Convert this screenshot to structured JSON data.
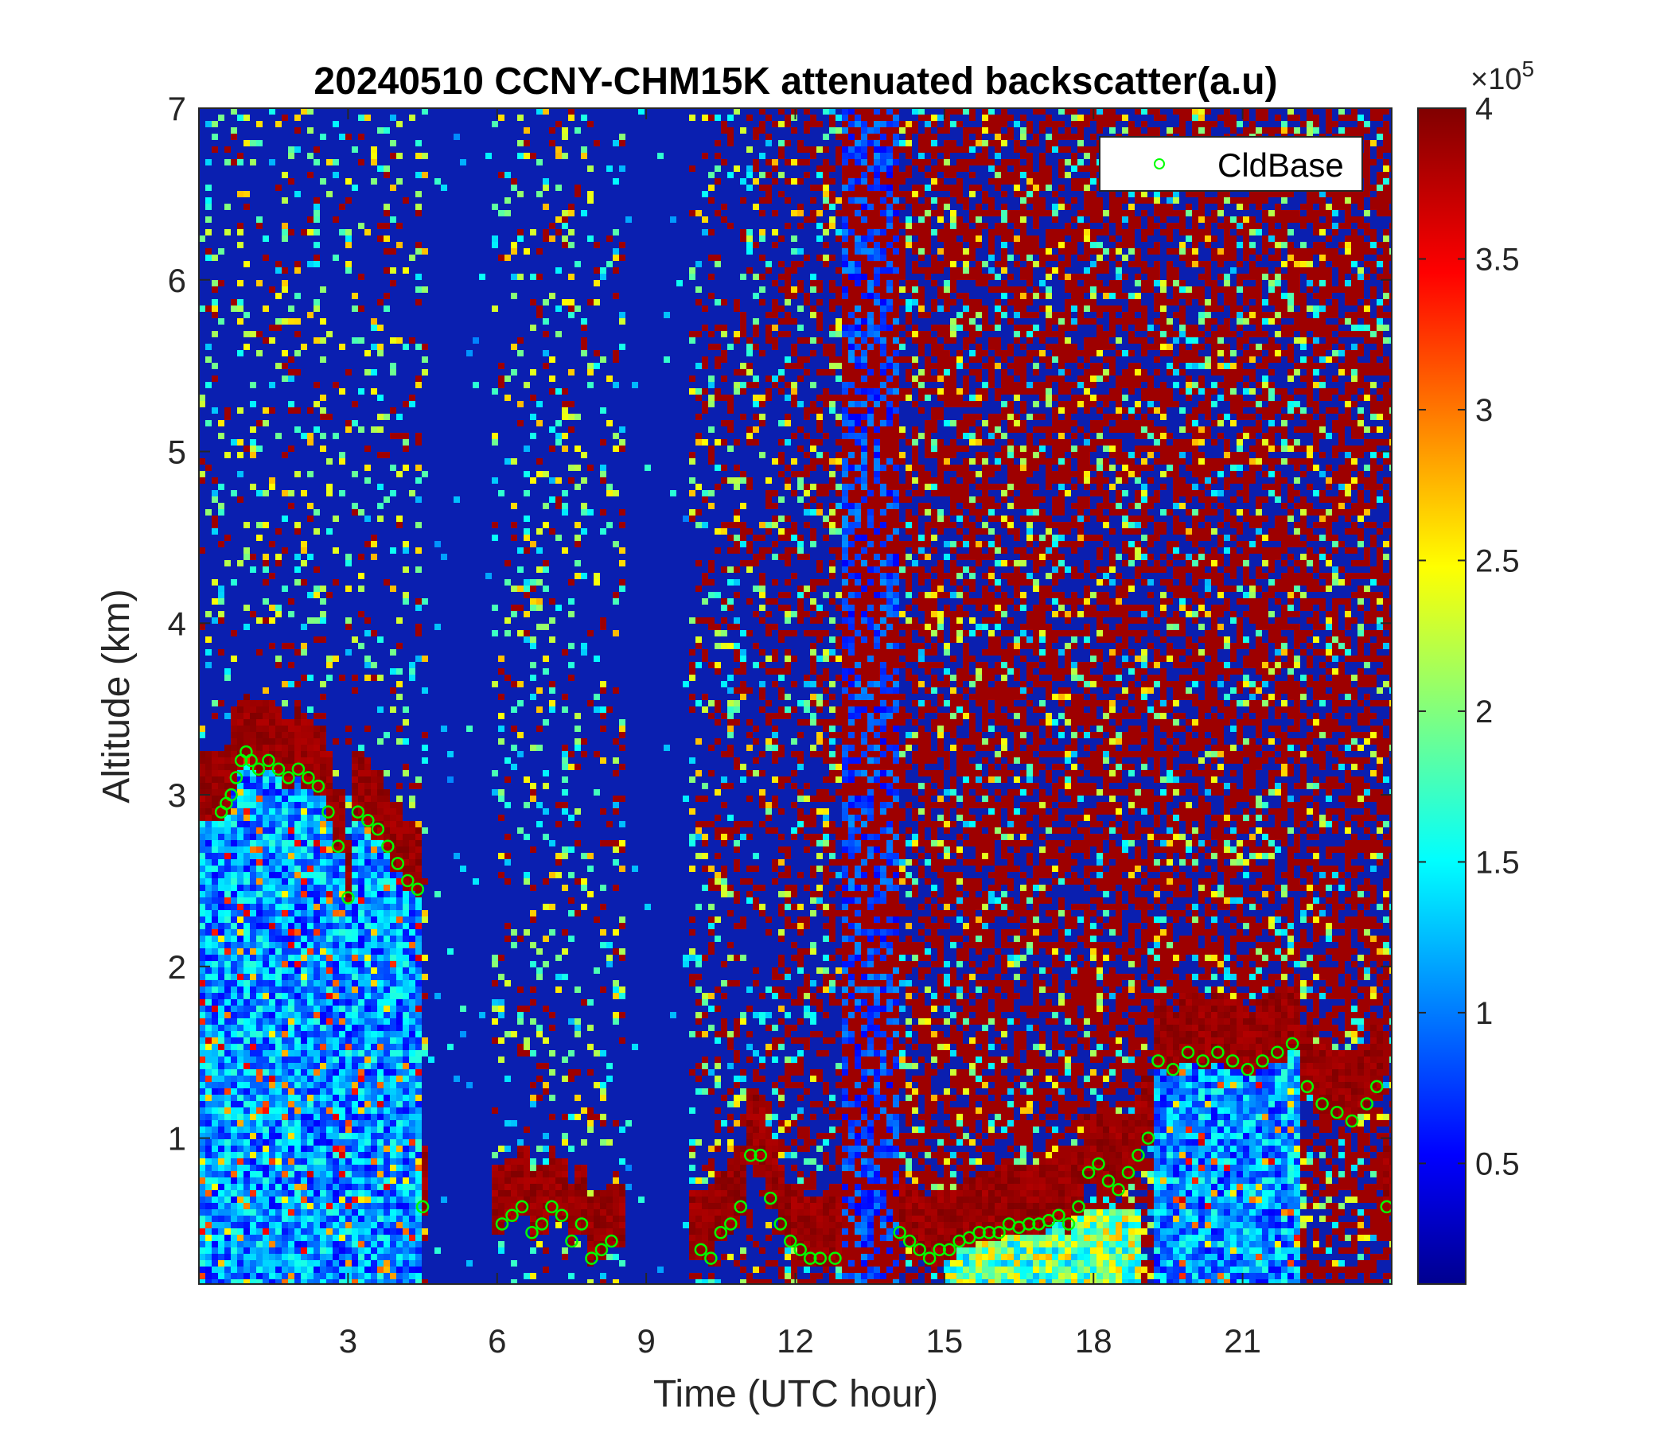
{
  "chart_data": {
    "type": "heatmap",
    "title": "20240510 CCNY-CHM15K attenuated backscatter(a.u)",
    "xlabel": "Time (UTC hour)",
    "ylabel": "Altitude (km)",
    "xlim": [
      0,
      24
    ],
    "ylim": [
      0.15,
      7
    ],
    "xticks": [
      3,
      6,
      9,
      12,
      15,
      18,
      21
    ],
    "yticks": [
      1,
      2,
      3,
      4,
      5,
      6,
      7
    ],
    "colorbar": {
      "colormap": "jet",
      "range": [
        0.1,
        4.0
      ],
      "ticks": [
        0.5,
        1,
        1.5,
        2,
        2.5,
        3,
        3.5,
        4
      ],
      "tick_labels": [
        "0.5",
        "1",
        "1.5",
        "2",
        "2.5",
        "3",
        "3.5",
        "4"
      ],
      "exponent_label": "×10",
      "exponent_power": "5"
    },
    "legend": {
      "position": "top-right",
      "entries": [
        "CldBase"
      ]
    },
    "series": [
      {
        "name": "CldBase",
        "marker": "circle",
        "color": "#00ff00",
        "x": [
          0.45,
          0.55,
          0.65,
          0.75,
          0.85,
          0.95,
          1.05,
          1.2,
          1.4,
          1.6,
          1.8,
          2.0,
          2.2,
          2.4,
          2.6,
          2.8,
          3.0,
          3.2,
          3.4,
          3.6,
          3.8,
          4.0,
          4.2,
          4.4,
          4.5,
          6.1,
          6.3,
          6.5,
          6.7,
          6.9,
          7.1,
          7.3,
          7.5,
          7.7,
          7.9,
          8.1,
          8.3,
          10.1,
          10.3,
          10.5,
          10.7,
          10.9,
          11.1,
          11.3,
          11.5,
          11.7,
          11.9,
          12.1,
          12.3,
          12.5,
          12.8,
          14.1,
          14.3,
          14.5,
          14.7,
          14.9,
          15.1,
          15.3,
          15.5,
          15.7,
          15.9,
          16.1,
          16.3,
          16.5,
          16.7,
          16.9,
          17.1,
          17.3,
          17.5,
          17.7,
          17.9,
          18.1,
          18.3,
          18.5,
          18.7,
          18.9,
          19.1,
          19.3,
          19.6,
          19.9,
          20.2,
          20.5,
          20.8,
          21.1,
          21.4,
          21.7,
          22.0,
          22.3,
          22.6,
          22.9,
          23.2,
          23.5,
          23.7,
          23.9
        ],
        "y": [
          2.9,
          2.95,
          3.0,
          3.1,
          3.2,
          3.25,
          3.2,
          3.15,
          3.2,
          3.15,
          3.1,
          3.15,
          3.1,
          3.05,
          2.9,
          2.7,
          2.4,
          2.9,
          2.85,
          2.8,
          2.7,
          2.6,
          2.5,
          2.45,
          0.6,
          0.5,
          0.55,
          0.6,
          0.45,
          0.5,
          0.6,
          0.55,
          0.4,
          0.5,
          0.3,
          0.35,
          0.4,
          0.35,
          0.3,
          0.45,
          0.5,
          0.6,
          0.9,
          0.9,
          0.65,
          0.5,
          0.4,
          0.35,
          0.3,
          0.3,
          0.3,
          0.45,
          0.4,
          0.35,
          0.3,
          0.35,
          0.35,
          0.4,
          0.42,
          0.45,
          0.45,
          0.45,
          0.5,
          0.48,
          0.5,
          0.5,
          0.52,
          0.55,
          0.5,
          0.6,
          0.8,
          0.85,
          0.75,
          0.7,
          0.8,
          0.9,
          1.0,
          1.45,
          1.4,
          1.5,
          1.45,
          1.5,
          1.45,
          1.4,
          1.45,
          1.5,
          1.55,
          1.3,
          1.2,
          1.15,
          1.1,
          1.2,
          1.3,
          0.6
        ]
      }
    ]
  }
}
